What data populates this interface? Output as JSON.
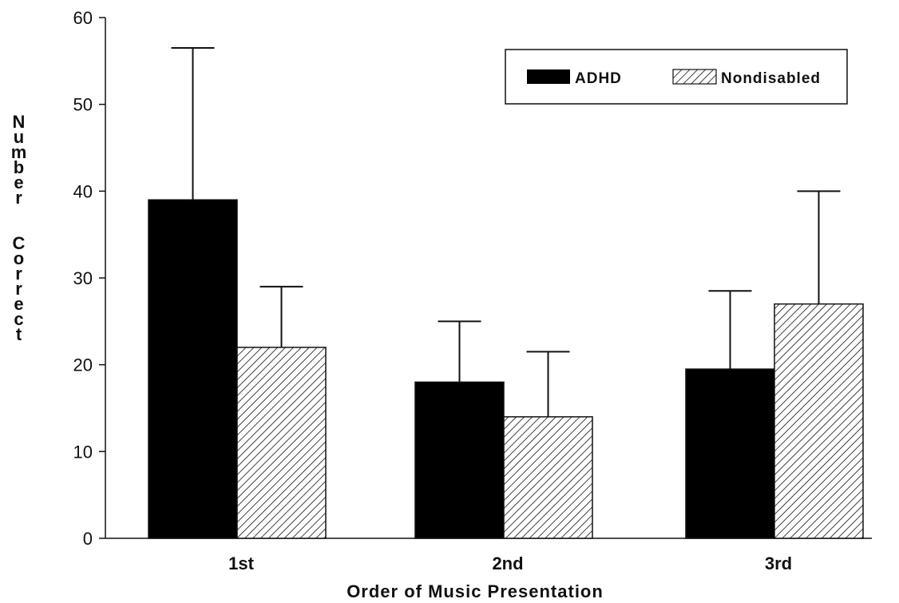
{
  "chart_data": {
    "type": "bar",
    "categories": [
      "1st",
      "2nd",
      "3rd"
    ],
    "series": [
      {
        "name": "ADHD",
        "values": [
          39,
          18,
          19.5
        ],
        "error": [
          17.5,
          7,
          9
        ],
        "fill": "#000000"
      },
      {
        "name": "Nondisabled",
        "values": [
          22,
          14,
          27
        ],
        "error": [
          7,
          7.5,
          13
        ],
        "fill": "hatched"
      }
    ],
    "xlabel": "Order of Music Presentation",
    "ylabel": "Number Correct",
    "ylabel_lines": [
      "Number",
      "Correct"
    ],
    "ylim": [
      0,
      60
    ],
    "yticks": [
      0,
      10,
      20,
      30,
      40,
      50,
      60
    ],
    "grid": false,
    "legend_position": "top-right"
  }
}
